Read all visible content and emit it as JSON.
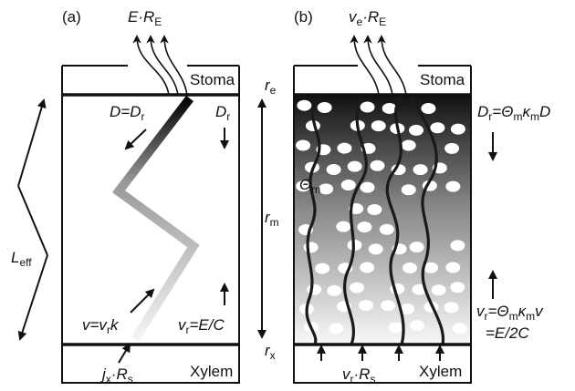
{
  "panel_a": {
    "label": "(a)",
    "top_flux": [
      "E·R",
      "E"
    ],
    "stoma": "Stoma",
    "d_eq": [
      "D=D",
      "r"
    ],
    "d_r": [
      "D",
      "r"
    ],
    "l_eff": [
      "L",
      "eff"
    ],
    "v_eq": [
      "v=v",
      "r",
      "k"
    ],
    "vr_eq": [
      "v",
      "r",
      "=E/C"
    ],
    "jx": [
      "j",
      "x",
      "·R",
      "s"
    ],
    "xylem": "Xylem"
  },
  "axis": {
    "r_e": [
      "r",
      "e"
    ],
    "r_m": [
      "r",
      "m"
    ],
    "r_x": [
      "r",
      "x"
    ]
  },
  "panel_b": {
    "label": "(b)",
    "top_flux": [
      "v",
      "e",
      "·R",
      "E"
    ],
    "stoma": "Stoma",
    "dr_eq": [
      "D",
      "r",
      "=Θ",
      "m",
      "κ",
      "m",
      "D"
    ],
    "theta": [
      "Θ",
      "m"
    ],
    "vr_eq": [
      "v",
      "r",
      "=Θ",
      "m",
      "κ",
      "m",
      "v"
    ],
    "vr_eq2": "=E/2C",
    "bottom_flux": [
      "v",
      "r",
      "·R",
      "s"
    ],
    "xylem": "Xylem"
  }
}
